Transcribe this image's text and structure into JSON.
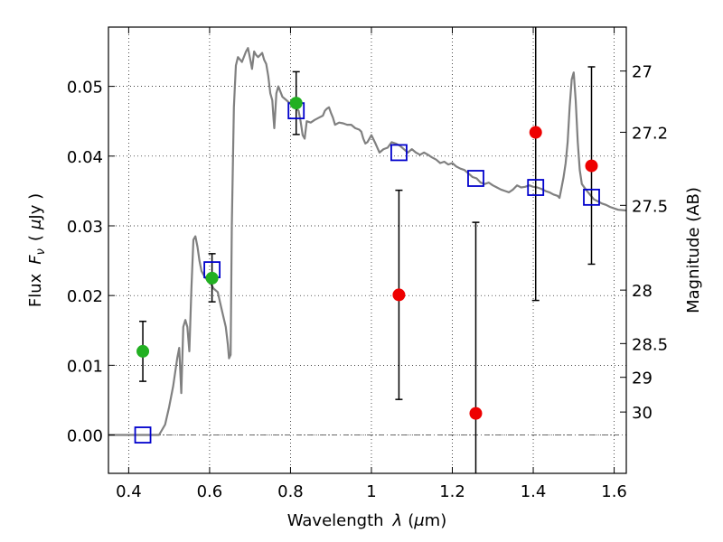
{
  "chart_data": {
    "type": "scatter",
    "xlabel_prefix": "Wavelength",
    "xlabel_symbol": "λ",
    "xlabel_unit_open": "(",
    "xlabel_unit_symbol": "μ",
    "xlabel_unit_rest": "m)",
    "ylabel_prefix": "Flux",
    "ylabel_symbol": "F",
    "ylabel_subscript": "ν",
    "ylabel_unit_open": "(",
    "ylabel_unit_symbol": "μ",
    "ylabel_unit_rest": "Jy )",
    "y2label": "Magnitude (AB)",
    "xlim": [
      0.35,
      1.63
    ],
    "ylim": [
      -0.0055,
      0.0585
    ],
    "xticks": [
      0.4,
      0.6,
      0.8,
      1.0,
      1.2,
      1.4,
      1.6
    ],
    "xtick_labels": [
      "0.4",
      "0.6",
      "0.8",
      "1",
      "1.2",
      "1.4",
      "1.6"
    ],
    "yticks": [
      0.0,
      0.01,
      0.02,
      0.03,
      0.04,
      0.05
    ],
    "ytick_labels": [
      "0.00",
      "0.01",
      "0.02",
      "0.03",
      "0.04",
      "0.05"
    ],
    "mag_ticks": [
      27,
      27.2,
      27.5,
      28,
      28.5,
      29,
      30
    ],
    "mag_tick_labels": [
      "27",
      "27.2",
      "27.5",
      "28",
      "28.5",
      "29",
      "30"
    ],
    "grid": true,
    "colors": {
      "sed": "#808080",
      "model_points": "#0000cc",
      "detections": "#22b022",
      "nondetections": "#ee0000",
      "errorbars": "#000000"
    },
    "sed_curve": [
      [
        0.35,
        0.0
      ],
      [
        0.46,
        0.0
      ],
      [
        0.475,
        0.0
      ],
      [
        0.49,
        0.0015
      ],
      [
        0.5,
        0.004
      ],
      [
        0.51,
        0.007
      ],
      [
        0.52,
        0.011
      ],
      [
        0.525,
        0.0125
      ],
      [
        0.53,
        0.006
      ],
      [
        0.535,
        0.0155
      ],
      [
        0.54,
        0.0165
      ],
      [
        0.545,
        0.0155
      ],
      [
        0.55,
        0.012
      ],
      [
        0.555,
        0.021
      ],
      [
        0.56,
        0.028
      ],
      [
        0.565,
        0.0285
      ],
      [
        0.57,
        0.027
      ],
      [
        0.575,
        0.025
      ],
      [
        0.58,
        0.0235
      ],
      [
        0.59,
        0.0225
      ],
      [
        0.6,
        0.022
      ],
      [
        0.61,
        0.021
      ],
      [
        0.62,
        0.0205
      ],
      [
        0.63,
        0.018
      ],
      [
        0.64,
        0.0155
      ],
      [
        0.645,
        0.013
      ],
      [
        0.648,
        0.011
      ],
      [
        0.652,
        0.0115
      ],
      [
        0.655,
        0.03
      ],
      [
        0.66,
        0.047
      ],
      [
        0.665,
        0.053
      ],
      [
        0.67,
        0.0542
      ],
      [
        0.68,
        0.0535
      ],
      [
        0.69,
        0.055
      ],
      [
        0.695,
        0.0555
      ],
      [
        0.7,
        0.054
      ],
      [
        0.705,
        0.0525
      ],
      [
        0.71,
        0.055
      ],
      [
        0.715,
        0.0545
      ],
      [
        0.72,
        0.0542
      ],
      [
        0.73,
        0.0548
      ],
      [
        0.735,
        0.0538
      ],
      [
        0.74,
        0.0532
      ],
      [
        0.745,
        0.0515
      ],
      [
        0.75,
        0.049
      ],
      [
        0.755,
        0.048
      ],
      [
        0.758,
        0.0455
      ],
      [
        0.76,
        0.044
      ],
      [
        0.763,
        0.047
      ],
      [
        0.765,
        0.049
      ],
      [
        0.77,
        0.05
      ],
      [
        0.78,
        0.0485
      ],
      [
        0.79,
        0.048
      ],
      [
        0.8,
        0.0475
      ],
      [
        0.81,
        0.047
      ],
      [
        0.815,
        0.0468
      ],
      [
        0.82,
        0.0465
      ],
      [
        0.825,
        0.045
      ],
      [
        0.83,
        0.043
      ],
      [
        0.835,
        0.0425
      ],
      [
        0.84,
        0.045
      ],
      [
        0.85,
        0.0448
      ],
      [
        0.86,
        0.0452
      ],
      [
        0.87,
        0.0455
      ],
      [
        0.88,
        0.0458
      ],
      [
        0.885,
        0.0465
      ],
      [
        0.89,
        0.0468
      ],
      [
        0.895,
        0.047
      ],
      [
        0.9,
        0.0462
      ],
      [
        0.905,
        0.0455
      ],
      [
        0.91,
        0.0445
      ],
      [
        0.92,
        0.0448
      ],
      [
        0.93,
        0.0447
      ],
      [
        0.94,
        0.0445
      ],
      [
        0.95,
        0.0445
      ],
      [
        0.96,
        0.044
      ],
      [
        0.97,
        0.0438
      ],
      [
        0.975,
        0.0435
      ],
      [
        0.98,
        0.0425
      ],
      [
        0.985,
        0.0418
      ],
      [
        0.99,
        0.042
      ],
      [
        1.0,
        0.043
      ],
      [
        1.01,
        0.0418
      ],
      [
        1.02,
        0.0405
      ],
      [
        1.03,
        0.041
      ],
      [
        1.04,
        0.0412
      ],
      [
        1.05,
        0.042
      ],
      [
        1.06,
        0.0418
      ],
      [
        1.07,
        0.0415
      ],
      [
        1.08,
        0.041
      ],
      [
        1.09,
        0.0405
      ],
      [
        1.1,
        0.041
      ],
      [
        1.11,
        0.0405
      ],
      [
        1.12,
        0.0402
      ],
      [
        1.13,
        0.0405
      ],
      [
        1.14,
        0.0402
      ],
      [
        1.15,
        0.0398
      ],
      [
        1.16,
        0.0395
      ],
      [
        1.17,
        0.039
      ],
      [
        1.18,
        0.0392
      ],
      [
        1.19,
        0.0388
      ],
      [
        1.2,
        0.039
      ],
      [
        1.21,
        0.0385
      ],
      [
        1.22,
        0.0382
      ],
      [
        1.23,
        0.038
      ],
      [
        1.24,
        0.0375
      ],
      [
        1.25,
        0.037
      ],
      [
        1.26,
        0.0368
      ],
      [
        1.27,
        0.0362
      ],
      [
        1.28,
        0.036
      ],
      [
        1.29,
        0.0362
      ],
      [
        1.3,
        0.0358
      ],
      [
        1.31,
        0.0355
      ],
      [
        1.32,
        0.0352
      ],
      [
        1.33,
        0.035
      ],
      [
        1.34,
        0.0348
      ],
      [
        1.35,
        0.0352
      ],
      [
        1.36,
        0.0358
      ],
      [
        1.37,
        0.0355
      ],
      [
        1.38,
        0.0356
      ],
      [
        1.39,
        0.0358
      ],
      [
        1.4,
        0.0356
      ],
      [
        1.41,
        0.0355
      ],
      [
        1.42,
        0.0353
      ],
      [
        1.43,
        0.035
      ],
      [
        1.44,
        0.0348
      ],
      [
        1.45,
        0.0345
      ],
      [
        1.46,
        0.0343
      ],
      [
        1.465,
        0.034
      ],
      [
        1.47,
        0.0355
      ],
      [
        1.475,
        0.037
      ],
      [
        1.48,
        0.039
      ],
      [
        1.485,
        0.042
      ],
      [
        1.49,
        0.047
      ],
      [
        1.495,
        0.051
      ],
      [
        1.5,
        0.052
      ],
      [
        1.505,
        0.048
      ],
      [
        1.51,
        0.042
      ],
      [
        1.515,
        0.038
      ],
      [
        1.52,
        0.036
      ],
      [
        1.53,
        0.0352
      ],
      [
        1.54,
        0.0345
      ],
      [
        1.55,
        0.0338
      ],
      [
        1.56,
        0.0335
      ],
      [
        1.57,
        0.0332
      ],
      [
        1.58,
        0.033
      ],
      [
        1.59,
        0.0327
      ],
      [
        1.6,
        0.0325
      ],
      [
        1.61,
        0.0323
      ],
      [
        1.63,
        0.0322
      ]
    ],
    "model_points": [
      {
        "x": 0.435,
        "y": 0.0
      },
      {
        "x": 0.606,
        "y": 0.0237
      },
      {
        "x": 0.814,
        "y": 0.0465
      },
      {
        "x": 1.068,
        "y": 0.0405
      },
      {
        "x": 1.258,
        "y": 0.0368
      },
      {
        "x": 1.406,
        "y": 0.0355
      },
      {
        "x": 1.544,
        "y": 0.0341
      }
    ],
    "detections": [
      {
        "x": 0.435,
        "y": 0.012,
        "err_lo": 0.0077,
        "err_hi": 0.0163
      },
      {
        "x": 0.606,
        "y": 0.0225,
        "err_lo": 0.0191,
        "err_hi": 0.026
      },
      {
        "x": 0.814,
        "y": 0.0476,
        "err_lo": 0.0431,
        "err_hi": 0.0521
      }
    ],
    "nondetections": [
      {
        "x": 1.068,
        "y": 0.0201,
        "err_lo": 0.0051,
        "err_hi": 0.0351
      },
      {
        "x": 1.258,
        "y": 0.0031,
        "err_lo": -0.006,
        "err_hi": 0.0305
      },
      {
        "x": 1.406,
        "y": 0.0434,
        "err_lo": 0.0193,
        "err_hi": 0.059
      },
      {
        "x": 1.544,
        "y": 0.0386,
        "err_lo": 0.0245,
        "err_hi": 0.0528
      }
    ]
  }
}
